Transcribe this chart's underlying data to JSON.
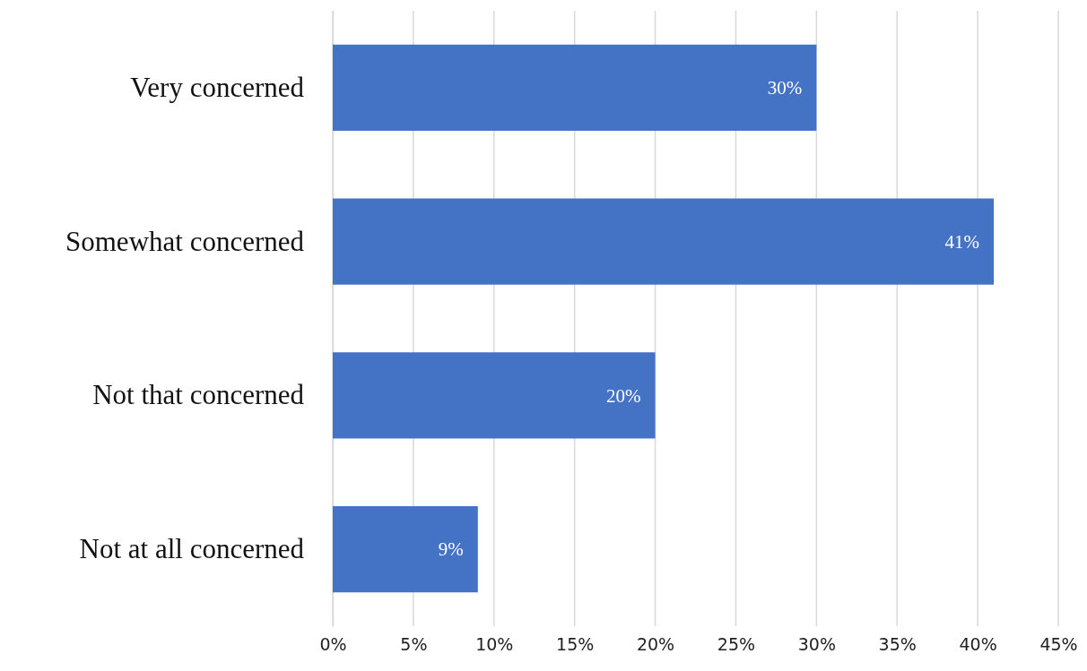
{
  "chart_data": {
    "type": "bar",
    "orientation": "horizontal",
    "categories": [
      "Very concerned",
      "Somewhat concerned",
      "Not that concerned",
      "Not at all concerned"
    ],
    "values": [
      30,
      41,
      20,
      9
    ],
    "value_labels": [
      "30%",
      "41%",
      "20%",
      "9%"
    ],
    "color": "#4472c4",
    "xlim": [
      0,
      45
    ],
    "xticks": [
      {
        "value": 0,
        "label": "0%"
      },
      {
        "value": 5,
        "label": "5%"
      },
      {
        "value": 10,
        "label": "10%"
      },
      {
        "value": 15,
        "label": "15%"
      },
      {
        "value": 20,
        "label": "20%"
      },
      {
        "value": 25,
        "label": "25%"
      },
      {
        "value": 30,
        "label": "30%"
      },
      {
        "value": 35,
        "label": "35%"
      },
      {
        "value": 40,
        "label": "40%"
      },
      {
        "value": 45,
        "label": "45%"
      }
    ],
    "grid": "x"
  }
}
